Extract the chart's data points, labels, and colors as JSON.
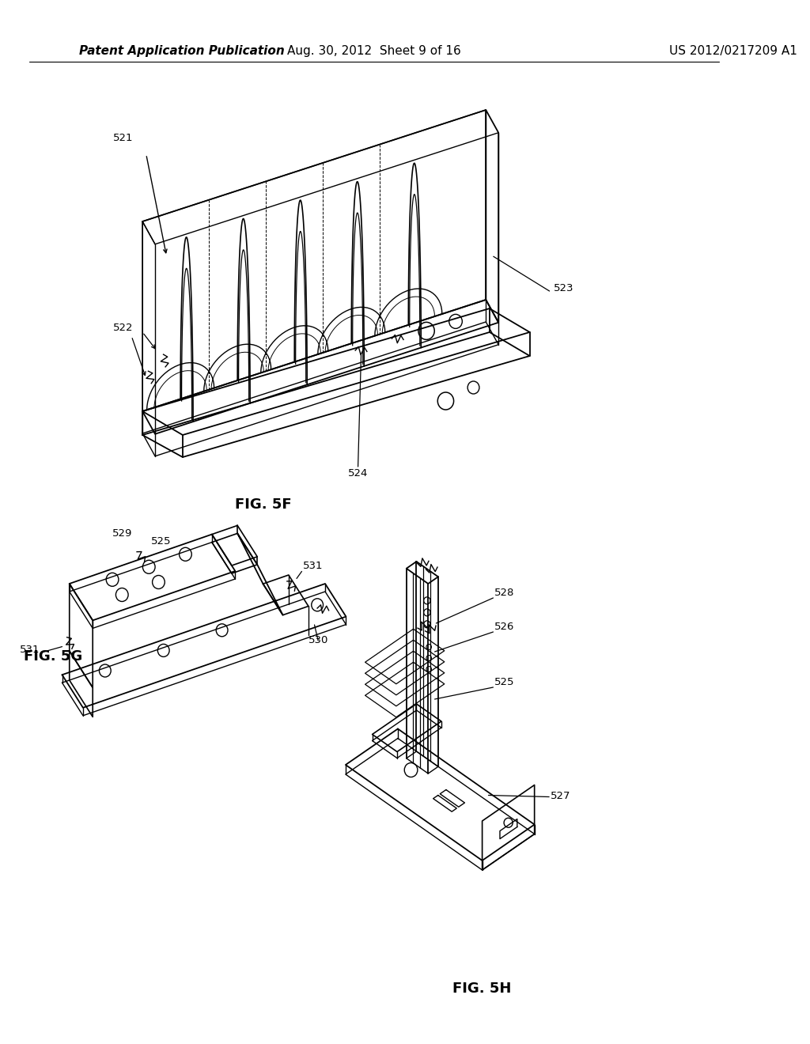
{
  "background_color": "#ffffff",
  "header_left": "Patent Application Publication",
  "header_mid": "Aug. 30, 2012  Sheet 9 of 16",
  "header_right": "US 2012/0217209 A1",
  "fig5f_label": "FIG. 5F",
  "fig5g_label": "FIG. 5G",
  "fig5h_label": "FIG. 5H",
  "line_color": "#000000",
  "ref_fontsize": 9.5,
  "label_fontsize": 13
}
